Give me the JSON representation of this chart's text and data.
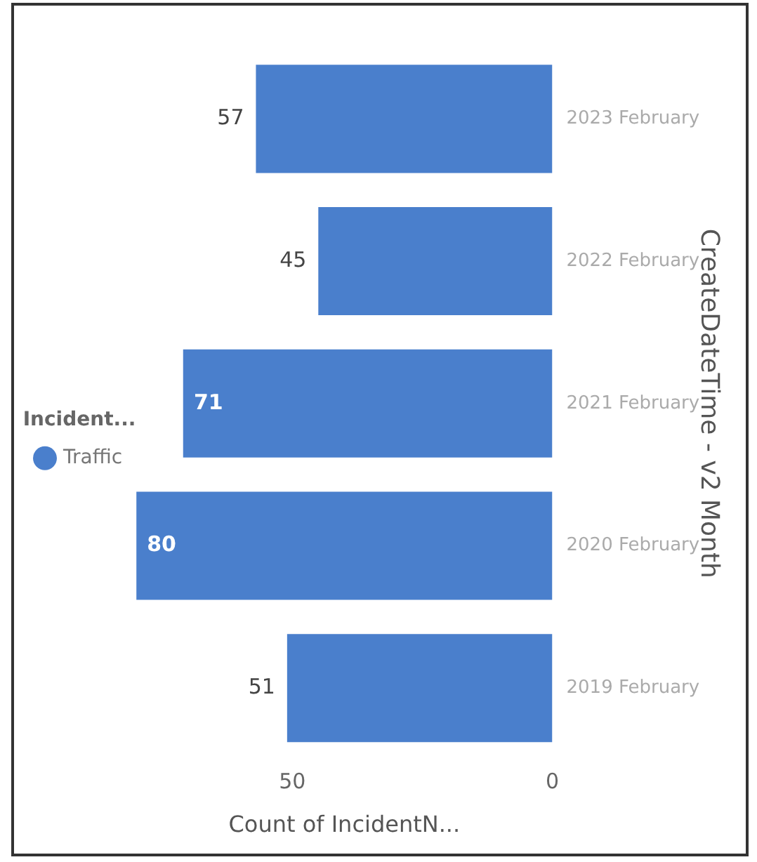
{
  "chart_data": {
    "type": "bar",
    "orientation": "horizontal",
    "xlabel": "Count of IncidentN...",
    "ylabel": "CreateDateTime - v2 Month",
    "legend_title": "Incident...",
    "categories": [
      "2023 February",
      "2022 February",
      "2021 February",
      "2020 February",
      "2019 February"
    ],
    "series": [
      {
        "name": "Traffic",
        "color": "#4a7fcc",
        "values": [
          57,
          45,
          71,
          80,
          51
        ]
      }
    ],
    "xlim": [
      80,
      0
    ],
    "xticks": [
      50,
      0
    ],
    "grid": false,
    "legend": "left",
    "data_labels": true
  }
}
